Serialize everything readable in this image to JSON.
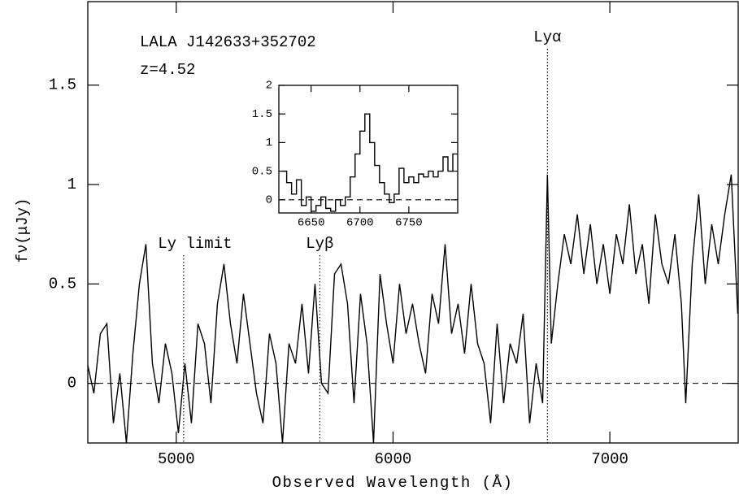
{
  "chart_data": [
    {
      "type": "line",
      "xlabel": "Observed Wavelength (Å)",
      "ylabel": "fν(μJy)",
      "annotations": [
        {
          "text": "LALA J142633+352702"
        },
        {
          "text": "z=4.52"
        }
      ],
      "lines": [
        {
          "label": "Ly limit",
          "x": 5034
        },
        {
          "label": "Lyβ",
          "x": 5662
        },
        {
          "label": "Lyα",
          "x": 6712
        }
      ],
      "hline": 0,
      "xlim": [
        4592,
        7592
      ],
      "ylim": [
        -0.3,
        1.92
      ],
      "xticks": [
        5000,
        6000,
        7000
      ],
      "yticks": [
        0,
        0.5,
        1,
        1.5
      ],
      "x": [
        4590,
        4620,
        4650,
        4680,
        4710,
        4740,
        4770,
        4800,
        4830,
        4860,
        4890,
        4920,
        4950,
        4980,
        5010,
        5040,
        5070,
        5100,
        5130,
        5160,
        5190,
        5220,
        5250,
        5280,
        5310,
        5340,
        5370,
        5400,
        5430,
        5460,
        5490,
        5520,
        5550,
        5580,
        5610,
        5640,
        5670,
        5700,
        5730,
        5760,
        5790,
        5820,
        5850,
        5880,
        5910,
        5940,
        5970,
        6000,
        6030,
        6060,
        6090,
        6120,
        6150,
        6180,
        6210,
        6240,
        6270,
        6300,
        6330,
        6360,
        6390,
        6420,
        6450,
        6480,
        6510,
        6540,
        6570,
        6600,
        6630,
        6660,
        6690,
        6712,
        6730,
        6760,
        6790,
        6820,
        6850,
        6880,
        6910,
        6940,
        6970,
        7000,
        7030,
        7060,
        7090,
        7120,
        7150,
        7180,
        7210,
        7240,
        7270,
        7300,
        7330,
        7350,
        7380,
        7410,
        7440,
        7470,
        7500,
        7530,
        7560,
        7590
      ],
      "series": [
        {
          "color": "#000000",
          "values": [
            0.1,
            -0.05,
            0.25,
            0.3,
            -0.2,
            0.05,
            -0.3,
            0.15,
            0.5,
            0.7,
            0.1,
            -0.1,
            0.2,
            0.05,
            -0.25,
            0.1,
            -0.2,
            0.3,
            0.2,
            -0.1,
            0.4,
            0.6,
            0.3,
            0.1,
            0.45,
            0.2,
            -0.05,
            -0.2,
            0.25,
            0.1,
            -0.3,
            0.2,
            0.1,
            0.4,
            0.05,
            0.5,
            0.0,
            -0.05,
            0.55,
            0.6,
            0.4,
            -0.1,
            0.45,
            0.2,
            -0.3,
            0.55,
            0.3,
            0.1,
            0.5,
            0.25,
            0.4,
            0.2,
            0.05,
            0.45,
            0.3,
            0.7,
            0.25,
            0.4,
            0.15,
            0.5,
            0.2,
            0.1,
            -0.2,
            0.3,
            -0.1,
            0.2,
            0.1,
            0.35,
            -0.2,
            0.1,
            -0.1,
            1.05,
            0.2,
            0.5,
            0.75,
            0.6,
            0.85,
            0.55,
            0.8,
            0.5,
            0.7,
            0.45,
            0.75,
            0.6,
            0.9,
            0.55,
            0.7,
            0.4,
            0.85,
            0.6,
            0.5,
            0.75,
            0.4,
            -0.1,
            0.6,
            0.95,
            0.5,
            0.8,
            0.6,
            0.85,
            1.05,
            0.35
          ]
        }
      ]
    },
    {
      "type": "step",
      "hline": 0,
      "xlim": [
        6617,
        6800
      ],
      "ylim": [
        -0.23,
        2
      ],
      "xticks": [
        6650,
        6700,
        6750
      ],
      "yticks": [
        0,
        0.5,
        1,
        1.5,
        2
      ],
      "x": [
        6620,
        6625,
        6630,
        6635,
        6640,
        6645,
        6650,
        6655,
        6660,
        6665,
        6670,
        6675,
        6680,
        6685,
        6690,
        6695,
        6700,
        6705,
        6710,
        6715,
        6720,
        6725,
        6730,
        6735,
        6740,
        6745,
        6750,
        6755,
        6760,
        6765,
        6770,
        6775,
        6780,
        6785,
        6790,
        6795
      ],
      "series": [
        {
          "color": "#000000",
          "values": [
            0.5,
            0.3,
            0.1,
            0.35,
            -0.1,
            0.05,
            -0.2,
            -0.1,
            0.05,
            -0.15,
            -0.2,
            0.0,
            -0.1,
            0.05,
            0.4,
            0.8,
            1.2,
            1.5,
            1.0,
            0.6,
            0.3,
            0.1,
            -0.05,
            0.1,
            0.55,
            0.3,
            0.4,
            0.3,
            0.45,
            0.4,
            0.5,
            0.4,
            0.5,
            0.75,
            0.5,
            0.8
          ]
        }
      ]
    }
  ]
}
